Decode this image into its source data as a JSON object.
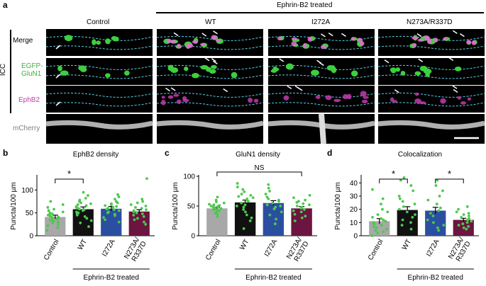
{
  "panel_labels": {
    "a": "a",
    "b": "b",
    "c": "c",
    "d": "d"
  },
  "panel_a": {
    "treated_header": "Ephrin-B2 treated",
    "columns": [
      "Control",
      "WT",
      "I272A",
      "N273A/R337D"
    ],
    "side_label": "ICC",
    "rows": [
      {
        "label": "Merge",
        "color": "#000000"
      },
      {
        "label_line1": "EGFP-",
        "label_line2": "GluN1",
        "color": "#3cb43c"
      },
      {
        "label": "EphB2",
        "color": "#c23bb0"
      },
      {
        "label": "mCherry",
        "color": "#808080"
      }
    ]
  },
  "charts": [
    {
      "id": "b",
      "chart_data": {
        "type": "bar",
        "title": "EphB2 density",
        "ylabel": "Puncta/100 µm",
        "ylim": [
          0,
          130
        ],
        "yticks": [
          "0",
          "50",
          "100"
        ],
        "categories": [
          "Control",
          "WT",
          "I272A",
          "N273A/\nR337D"
        ],
        "values": [
          41,
          58,
          59,
          53
        ],
        "errors": [
          4,
          5,
          5,
          4
        ],
        "bar_colors": [
          "#a8a8a8",
          "#111111",
          "#2b4fa0",
          "#6b1540"
        ],
        "significance": [
          {
            "pair": [
              0,
              1
            ],
            "label": "*"
          }
        ],
        "group_label": "Ephrin-B2 treated",
        "points": [
          [
            12,
            18,
            22,
            25,
            28,
            30,
            32,
            34,
            35,
            37,
            38,
            40,
            41,
            42,
            43,
            45,
            46,
            48,
            50,
            52,
            55,
            58,
            62,
            68,
            75
          ],
          [
            20,
            28,
            33,
            38,
            42,
            45,
            48,
            50,
            52,
            55,
            57,
            58,
            60,
            62,
            64,
            66,
            68,
            70,
            72,
            75,
            78,
            82,
            88,
            95
          ],
          [
            30,
            35,
            40,
            44,
            47,
            50,
            52,
            55,
            57,
            58,
            60,
            62,
            64,
            66,
            68,
            70,
            72,
            75,
            80,
            85,
            90
          ],
          [
            25,
            30,
            35,
            38,
            42,
            45,
            48,
            50,
            52,
            55,
            57,
            60,
            62,
            65,
            68,
            72,
            75,
            80,
            125
          ]
        ]
      }
    },
    {
      "id": "c",
      "chart_data": {
        "type": "bar",
        "title": "GluN1 density",
        "ylabel": "Puncta/100 µm",
        "ylim": [
          0,
          100
        ],
        "yticks": [
          "0",
          "50",
          "100"
        ],
        "categories": [
          "Control",
          "WT",
          "I272A",
          "N273A/\nR337D"
        ],
        "values": [
          46,
          56,
          55,
          46
        ],
        "errors": [
          2,
          4,
          4,
          3
        ],
        "bar_colors": [
          "#a8a8a8",
          "#111111",
          "#2b4fa0",
          "#6b1540"
        ],
        "significance": [
          {
            "pair": [
              0,
              3
            ],
            "label": "NS"
          }
        ],
        "group_label": "Ephrin-B2 treated",
        "points": [
          [
            32,
            36,
            38,
            40,
            42,
            43,
            44,
            45,
            46,
            47,
            48,
            49,
            50,
            51,
            52,
            53,
            55,
            57,
            60,
            65
          ],
          [
            12,
            25,
            30,
            35,
            40,
            44,
            48,
            50,
            52,
            55,
            58,
            60,
            62,
            64,
            66,
            68,
            70,
            74,
            78,
            82,
            88
          ],
          [
            20,
            28,
            35,
            40,
            45,
            48,
            50,
            52,
            55,
            58,
            60,
            62,
            65,
            70,
            75,
            80,
            86
          ],
          [
            25,
            30,
            33,
            36,
            40,
            42,
            44,
            46,
            48,
            50,
            52,
            54,
            56,
            58,
            60,
            64,
            68
          ]
        ]
      }
    },
    {
      "id": "d",
      "chart_data": {
        "type": "bar",
        "title": "Colocalization",
        "ylabel": "Puncta/100 µm",
        "ylim": [
          0,
          45
        ],
        "yticks": [
          "0",
          "10",
          "20",
          "30",
          "40"
        ],
        "categories": [
          "Control",
          "WT",
          "I272A",
          "N273A/\nR337D"
        ],
        "values": [
          11,
          19.5,
          19,
          12
        ],
        "errors": [
          2,
          2.5,
          2.5,
          1.2
        ],
        "bar_colors": [
          "#a8a8a8",
          "#111111",
          "#2b4fa0",
          "#6b1540"
        ],
        "significance": [
          {
            "pair": [
              0,
              1
            ],
            "label": "*"
          },
          {
            "pair": [
              2,
              3
            ],
            "label": "*"
          }
        ],
        "group_label": "Ephrin-B2 treated",
        "points": [
          [
            0,
            2,
            3,
            4,
            5,
            6,
            7,
            8,
            9,
            10,
            11,
            12,
            13,
            14,
            16,
            18,
            20,
            24,
            28,
            35
          ],
          [
            5,
            8,
            10,
            12,
            14,
            16,
            18,
            20,
            22,
            24,
            26,
            28,
            30,
            34,
            38,
            42,
            44
          ],
          [
            4,
            6,
            8,
            10,
            12,
            15,
            17,
            19,
            21,
            24,
            27,
            30,
            34,
            38,
            42
          ],
          [
            5,
            6,
            7,
            8,
            9,
            10,
            11,
            12,
            13,
            14,
            15,
            16,
            17,
            18,
            20,
            22
          ]
        ]
      }
    }
  ]
}
